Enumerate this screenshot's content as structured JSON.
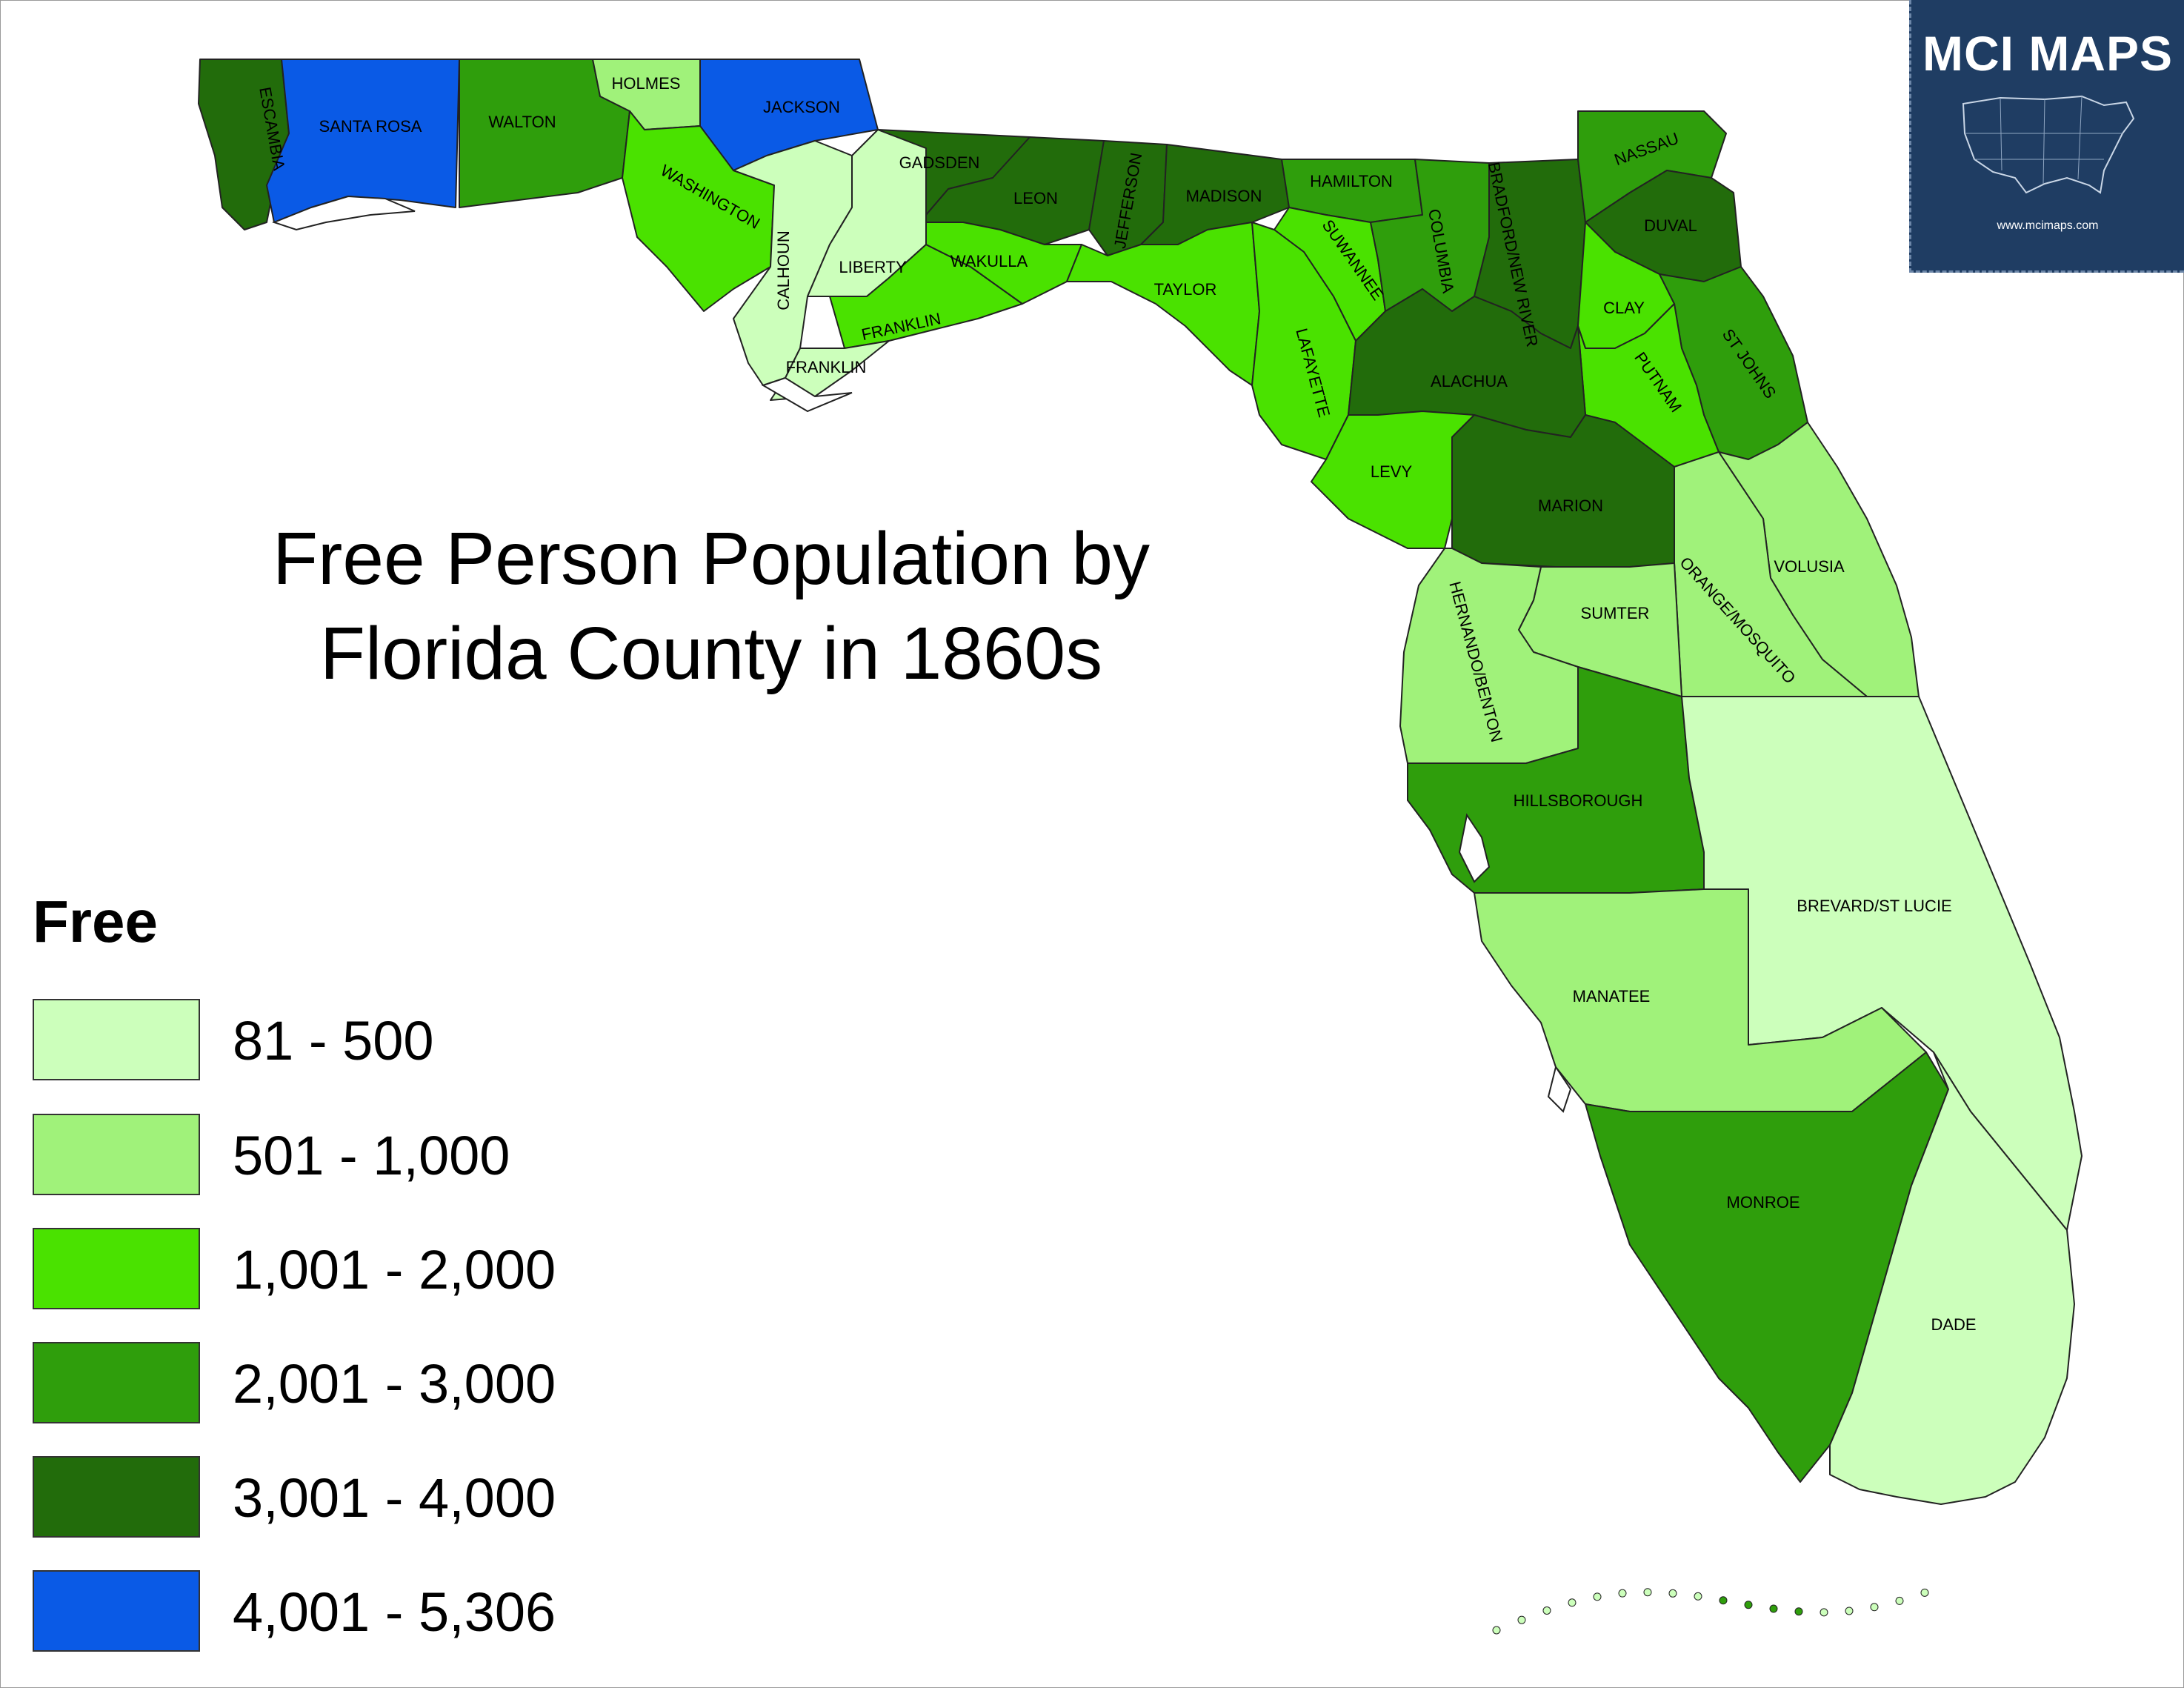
{
  "title": {
    "line1": "Free Person Population by",
    "line2": "Florida County in 1860s"
  },
  "legend": {
    "title": "Free",
    "items": [
      {
        "label": "81 - 500",
        "color": "#ccffbb"
      },
      {
        "label": "501 - 1,000",
        "color": "#a0f27a"
      },
      {
        "label": "1,001 - 2,000",
        "color": "#4ae200"
      },
      {
        "label": "2,001 - 3,000",
        "color": "#2f9e0c"
      },
      {
        "label": "3,001 - 4,000",
        "color": "#226c0b"
      },
      {
        "label": "4,001 - 5,306",
        "color": "#0a5ae6"
      }
    ]
  },
  "badge": {
    "title": "MCI MAPS",
    "url": "www.mcimaps.com"
  },
  "counties": [
    {
      "name": "ESCAMBIA",
      "class": 4
    },
    {
      "name": "SANTA ROSA",
      "class": 5
    },
    {
      "name": "WALTON",
      "class": 3
    },
    {
      "name": "HOLMES",
      "class": 1
    },
    {
      "name": "JACKSON",
      "class": 5
    },
    {
      "name": "WASHINGTON",
      "class": 2
    },
    {
      "name": "CALHOUN",
      "class": 0
    },
    {
      "name": "LIBERTY",
      "class": 0
    },
    {
      "name": "FRANKLIN",
      "class": 2
    },
    {
      "name": "FRANKLIN",
      "class": 0
    },
    {
      "name": "GADSDEN",
      "class": 4
    },
    {
      "name": "LEON",
      "class": 4
    },
    {
      "name": "WAKULLA",
      "class": 2
    },
    {
      "name": "JEFFERSON",
      "class": 4
    },
    {
      "name": "MADISON",
      "class": 4
    },
    {
      "name": "TAYLOR",
      "class": 2
    },
    {
      "name": "HAMILTON",
      "class": 3
    },
    {
      "name": "SUWANNEE",
      "class": 2
    },
    {
      "name": "COLUMBIA",
      "class": 3
    },
    {
      "name": "LAFAYETTE",
      "class": 2
    },
    {
      "name": "BRADFORD/NEW RIVER",
      "class": 4
    },
    {
      "name": "NASSAU",
      "class": 3
    },
    {
      "name": "DUVAL",
      "class": 4
    },
    {
      "name": "CLAY",
      "class": 2
    },
    {
      "name": "ST JOHNS",
      "class": 3
    },
    {
      "name": "PUTNAM",
      "class": 2
    },
    {
      "name": "ALACHUA",
      "class": 4
    },
    {
      "name": "LEVY",
      "class": 2
    },
    {
      "name": "MARION",
      "class": 4
    },
    {
      "name": "VOLUSIA",
      "class": 1
    },
    {
      "name": "ORANGE/MOSQUITO",
      "class": 1
    },
    {
      "name": "SUMTER",
      "class": 1
    },
    {
      "name": "HERNANDO/BENTON",
      "class": 1
    },
    {
      "name": "HILLSBOROUGH",
      "class": 3
    },
    {
      "name": "BREVARD/ST LUCIE",
      "class": 0
    },
    {
      "name": "MANATEE",
      "class": 1
    },
    {
      "name": "MONROE",
      "class": 3
    },
    {
      "name": "DADE",
      "class": 0
    }
  ]
}
